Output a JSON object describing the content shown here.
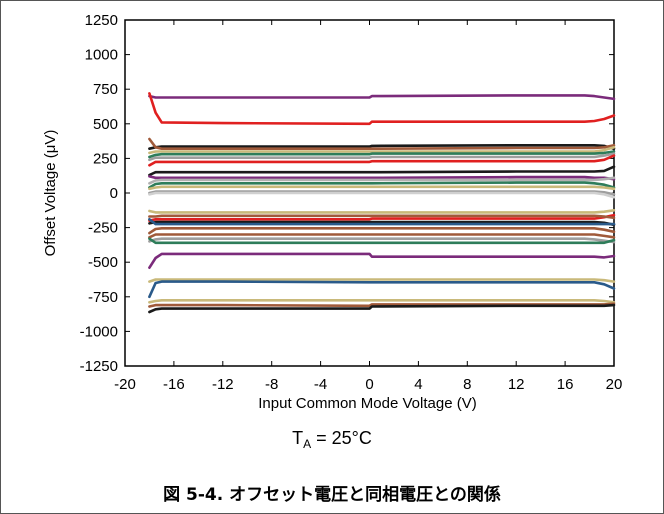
{
  "chart_data": {
    "type": "line",
    "xlabel": "Input Common Mode Voltage (V)",
    "ylabel": "Offset Voltage (μV)",
    "xlim": [
      -20,
      20
    ],
    "ylim": [
      -1250,
      1250
    ],
    "x_ticks": [
      "-20",
      "-16",
      "-12",
      "-8",
      "-4",
      "0",
      "4",
      "8",
      "12",
      "16",
      "20"
    ],
    "y_ticks": [
      "1250",
      "1000",
      "750",
      "500",
      "250",
      "0",
      "-250",
      "-500",
      "-750",
      "-1000",
      "-1250"
    ],
    "grid": false,
    "x": [
      -18,
      -17.5,
      -17,
      -12,
      0,
      0.2,
      12,
      17.6,
      18.4,
      19.2,
      20
    ],
    "series": [
      {
        "color": "#7b2b7b",
        "values": [
          700,
          690,
          690,
          690,
          690,
          700,
          705,
          705,
          700,
          690,
          680
        ]
      },
      {
        "color": "#e02020",
        "values": [
          720,
          580,
          510,
          505,
          500,
          515,
          515,
          515,
          520,
          535,
          560
        ]
      },
      {
        "color": "#1a1a1a",
        "values": [
          320,
          330,
          335,
          335,
          335,
          340,
          345,
          345,
          345,
          340,
          320
        ]
      },
      {
        "color": "#a05a3a",
        "values": [
          390,
          330,
          320,
          320,
          320,
          320,
          325,
          325,
          325,
          330,
          345
        ]
      },
      {
        "color": "#c9b97a",
        "values": [
          290,
          300,
          300,
          300,
          300,
          300,
          300,
          300,
          300,
          310,
          330
        ]
      },
      {
        "color": "#2e7d5a",
        "values": [
          260,
          275,
          280,
          280,
          280,
          285,
          285,
          285,
          285,
          290,
          300
        ]
      },
      {
        "color": "#9e9e9e",
        "values": [
          240,
          255,
          255,
          255,
          255,
          260,
          260,
          260,
          260,
          270,
          285
        ]
      },
      {
        "color": "#e02020",
        "values": [
          200,
          225,
          225,
          225,
          225,
          230,
          230,
          230,
          230,
          240,
          270
        ]
      },
      {
        "color": "#1a1a1a",
        "values": [
          130,
          150,
          150,
          150,
          150,
          150,
          155,
          155,
          155,
          160,
          190
        ]
      },
      {
        "color": "#7b2b7b",
        "values": [
          120,
          110,
          110,
          110,
          110,
          110,
          115,
          115,
          110,
          110,
          100
        ]
      },
      {
        "color": "#b0b0b0",
        "values": [
          70,
          90,
          95,
          95,
          95,
          95,
          95,
          95,
          95,
          100,
          110
        ]
      },
      {
        "color": "#2e7d5a",
        "values": [
          40,
          65,
          70,
          70,
          70,
          70,
          75,
          75,
          70,
          60,
          40
        ]
      },
      {
        "color": "#c9b97a",
        "values": [
          30,
          40,
          45,
          45,
          45,
          45,
          45,
          45,
          45,
          40,
          30
        ]
      },
      {
        "color": "#9e9e9e",
        "values": [
          0,
          10,
          10,
          10,
          10,
          10,
          10,
          10,
          10,
          5,
          -10
        ]
      },
      {
        "color": "#d0d0d0",
        "values": [
          -10,
          0,
          0,
          0,
          0,
          0,
          0,
          0,
          0,
          -10,
          -30
        ]
      },
      {
        "color": "#c9b97a",
        "values": [
          -130,
          -140,
          -140,
          -140,
          -140,
          -140,
          -140,
          -140,
          -140,
          -135,
          -125
        ]
      },
      {
        "color": "#e02020",
        "values": [
          -200,
          -190,
          -190,
          -190,
          -190,
          -185,
          -185,
          -185,
          -185,
          -175,
          -160
        ]
      },
      {
        "color": "#a05a3a",
        "values": [
          -170,
          -170,
          -165,
          -165,
          -165,
          -165,
          -165,
          -165,
          -165,
          -170,
          -180
        ]
      },
      {
        "color": "#1a1a1a",
        "values": [
          -220,
          -210,
          -210,
          -210,
          -210,
          -210,
          -210,
          -210,
          -210,
          -215,
          -230
        ]
      },
      {
        "color": "#2a5a8a",
        "values": [
          -190,
          -225,
          -225,
          -225,
          -225,
          -225,
          -225,
          -225,
          -225,
          -225,
          -225
        ]
      },
      {
        "color": "#a05a3a",
        "values": [
          -290,
          -260,
          -255,
          -255,
          -255,
          -255,
          -255,
          -255,
          -255,
          -265,
          -280
        ]
      },
      {
        "color": "#a05a3a",
        "values": [
          -320,
          -300,
          -300,
          -300,
          -300,
          -300,
          -300,
          -300,
          -300,
          -310,
          -320
        ]
      },
      {
        "color": "#9e9e9e",
        "values": [
          -350,
          -335,
          -330,
          -330,
          -330,
          -330,
          -330,
          -330,
          -335,
          -345,
          -355
        ]
      },
      {
        "color": "#2e7d5a",
        "values": [
          -330,
          -360,
          -360,
          -360,
          -360,
          -360,
          -360,
          -360,
          -360,
          -360,
          -340
        ]
      },
      {
        "color": "#7b2b7b",
        "values": [
          -540,
          -470,
          -440,
          -440,
          -440,
          -460,
          -460,
          -460,
          -460,
          -465,
          -455
        ]
      },
      {
        "color": "#c9b97a",
        "values": [
          -640,
          -625,
          -625,
          -625,
          -625,
          -625,
          -625,
          -625,
          -625,
          -630,
          -640
        ]
      },
      {
        "color": "#2a5a8a",
        "values": [
          -750,
          -650,
          -640,
          -640,
          -645,
          -645,
          -645,
          -645,
          -645,
          -660,
          -690
        ]
      },
      {
        "color": "#c9b97a",
        "values": [
          -790,
          -780,
          -775,
          -775,
          -775,
          -775,
          -775,
          -775,
          -775,
          -780,
          -790
        ]
      },
      {
        "color": "#a05a3a",
        "values": [
          -820,
          -810,
          -810,
          -810,
          -815,
          -805,
          -805,
          -805,
          -805,
          -805,
          -800
        ]
      },
      {
        "color": "#1a1a1a",
        "values": [
          -860,
          -840,
          -835,
          -835,
          -835,
          -820,
          -815,
          -815,
          -815,
          -815,
          -810
        ]
      }
    ]
  },
  "annotation": {
    "t": "T",
    "a": "A",
    "rest": " = 25°C"
  },
  "caption": "図 5-4. オフセット電圧と同相電圧との関係"
}
